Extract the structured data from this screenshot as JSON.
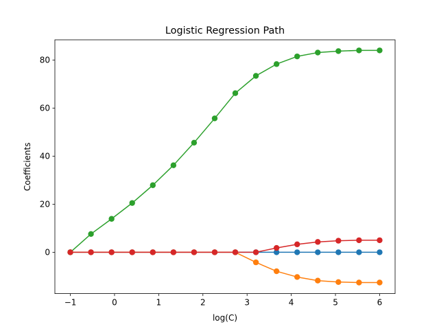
{
  "chart_data": {
    "type": "line",
    "title": "Logistic Regression Path",
    "xlabel": "log(C)",
    "ylabel": "Coefficients",
    "xlim": [
      -1.35,
      6.35
    ],
    "ylim": [
      -17.2,
      88.4
    ],
    "xticks": [
      -1,
      0,
      1,
      2,
      3,
      4,
      5,
      6
    ],
    "xtick_labels": [
      "−1",
      "0",
      "1",
      "2",
      "3",
      "4",
      "5",
      "6"
    ],
    "yticks": [
      0,
      20,
      40,
      60,
      80
    ],
    "ytick_labels": [
      "0",
      "20",
      "40",
      "60",
      "80"
    ],
    "grid": false,
    "legend": "none",
    "markers": true,
    "x": [
      -1.0,
      -0.5333,
      -0.0667,
      0.4,
      0.8667,
      1.3333,
      1.8,
      2.2667,
      2.7333,
      3.2,
      3.6667,
      4.1333,
      4.6,
      5.0667,
      5.5333,
      6.0
    ],
    "series": [
      {
        "color": "#1f77b4",
        "values": [
          0,
          0,
          0,
          0,
          0,
          0,
          0,
          0,
          0,
          0,
          0,
          0,
          0,
          0,
          0,
          0
        ]
      },
      {
        "color": "#ff7f0e",
        "values": [
          0,
          0,
          0,
          0,
          0,
          0,
          0,
          0,
          0,
          -4.2,
          -7.9,
          -10.3,
          -11.8,
          -12.4,
          -12.6,
          -12.6
        ]
      },
      {
        "color": "#2ca02c",
        "values": [
          0,
          7.6,
          13.9,
          20.5,
          27.9,
          36.2,
          45.6,
          55.7,
          66.2,
          73.4,
          78.3,
          81.5,
          83.1,
          83.7,
          84.0,
          84.0
        ]
      },
      {
        "color": "#d62728",
        "values": [
          0,
          0,
          0,
          0,
          0,
          0,
          0,
          0,
          0,
          0,
          1.8,
          3.3,
          4.3,
          4.8,
          5.0,
          5.0
        ]
      }
    ]
  }
}
